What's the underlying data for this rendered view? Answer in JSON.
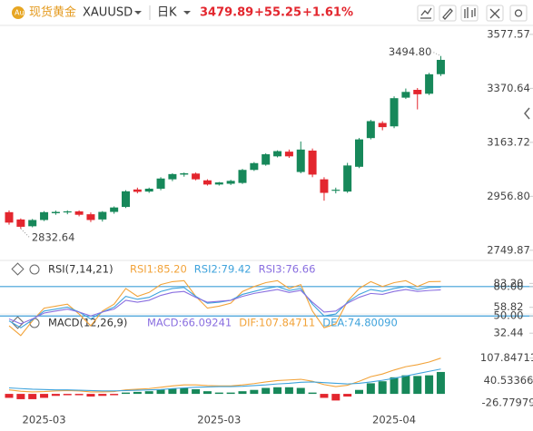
{
  "header": {
    "name": "现货黄金",
    "symbol": "XAUUSD",
    "period": "日K",
    "price": "3479.89",
    "change": "+55.25",
    "change_pct": "+1.61%"
  },
  "chart_data": [
    {
      "type": "candlestick",
      "up_color": "#17885a",
      "down_color": "#e3262e",
      "open": [
        2896,
        2868,
        2842,
        2866,
        2892,
        2895,
        2899,
        2888,
        2868,
        2897,
        2916,
        2983,
        2975,
        2986,
        3022,
        3040,
        3044,
        3018,
        3002,
        3005,
        3008,
        3058,
        3078,
        3110,
        3128,
        3050,
        3132,
        3022,
        2978,
        2975,
        3070,
        3180,
        3238,
        3225,
        3335,
        3365,
        3350,
        3425
      ],
      "high": [
        2903,
        2872,
        2870,
        2900,
        2902,
        2903,
        2903,
        2895,
        2900,
        2918,
        2980,
        2990,
        2990,
        3030,
        3045,
        3048,
        3048,
        3022,
        3012,
        3020,
        3062,
        3088,
        3122,
        3133,
        3136,
        3167,
        3140,
        3030,
        2990,
        3085,
        3180,
        3250,
        3245,
        3340,
        3370,
        3372,
        3430,
        3494.8
      ],
      "low": [
        2848,
        2832.64,
        2838,
        2862,
        2886,
        2888,
        2880,
        2858,
        2860,
        2890,
        2912,
        2968,
        2970,
        2980,
        3015,
        3032,
        3018,
        2998,
        2998,
        3000,
        3004,
        3054,
        3074,
        3106,
        3104,
        3045,
        3030,
        2940,
        2968,
        2970,
        3065,
        3175,
        3210,
        3218,
        3330,
        3290,
        3345,
        3418
      ],
      "close": [
        2856,
        2840,
        2866,
        2896,
        2897,
        2899,
        2886,
        2866,
        2897,
        2914,
        2976,
        2974,
        2986,
        3025,
        3042,
        3045,
        3022,
        3002,
        3010,
        3016,
        3058,
        3084,
        3118,
        3130,
        3110,
        3136,
        3040,
        2970,
        2982,
        3075,
        3175,
        3245,
        3222,
        3333,
        3357,
        3348,
        3424.64,
        3479.89
      ],
      "ylim": [
        2718,
        3605
      ],
      "yticks": [
        3577.57,
        3370.64,
        3163.72,
        {
          "value": 2956.8,
          "label": "2956.80"
        },
        2749.87
      ],
      "annotations": {
        "max": "3494.80",
        "min": "2832.64"
      }
    },
    {
      "type": "line",
      "title": "RSI(7,14,21)",
      "series": [
        {
          "name": "RSI1",
          "legend_label": "RSI1:85.20",
          "color": "#f2a33a",
          "values": [
            40,
            30,
            45,
            58,
            60,
            62,
            52,
            40,
            55,
            62,
            78,
            70,
            74,
            82,
            85,
            86,
            70,
            58,
            60,
            63,
            75,
            80,
            84,
            86,
            78,
            82,
            55,
            38,
            42,
            65,
            78,
            85,
            80,
            84,
            86,
            80,
            85,
            85.2
          ]
        },
        {
          "name": "RSI2",
          "legend_label": "RSI2:79.42",
          "color": "#3fa3dc",
          "values": [
            45,
            38,
            46,
            55,
            57,
            59,
            54,
            47,
            54,
            59,
            70,
            67,
            69,
            75,
            78,
            79,
            70,
            63,
            64,
            66,
            72,
            75,
            78,
            80,
            76,
            78,
            62,
            50,
            52,
            64,
            72,
            77,
            75,
            78,
            80,
            77,
            79,
            79.42
          ]
        },
        {
          "name": "RSI3",
          "legend_label": "RSI3:76.66",
          "color": "#8a6fe0",
          "values": [
            47,
            42,
            47,
            53,
            55,
            57,
            54,
            50,
            54,
            57,
            66,
            64,
            66,
            71,
            74,
            75,
            69,
            64,
            65,
            66,
            70,
            73,
            75,
            77,
            74,
            76,
            64,
            54,
            55,
            63,
            69,
            73,
            72,
            75,
            77,
            75,
            76,
            76.66
          ]
        }
      ],
      "levels": [
        80,
        50
      ],
      "level_color": "#3f9fd8",
      "ylim": [
        28,
        90
      ],
      "yticks": [
        {
          "value": 80,
          "label": "80.00"
        },
        {
          "value": 83.2,
          "label": "83.20"
        },
        58.82,
        {
          "value": 50,
          "label": "50.00"
        },
        32.44
      ]
    },
    {
      "type": "macd",
      "title": "MACD(12,26,9)",
      "histogram": {
        "name": "MACD",
        "legend_label": "MACD:66.09241",
        "up_color": "#17885a",
        "down_color": "#e3262e",
        "values": [
          -12,
          -16,
          -16,
          -12,
          -6,
          -4,
          -4,
          -8,
          -6,
          -4,
          4,
          6,
          8,
          14,
          16,
          18,
          14,
          8,
          4,
          4,
          8,
          12,
          18,
          20,
          20,
          18,
          4,
          -12,
          -20,
          -8,
          12,
          32,
          38,
          50,
          56,
          54,
          56,
          66.09
        ]
      },
      "series": [
        {
          "name": "DIF",
          "legend_label": "DIF:107.84711",
          "color": "#f2a33a",
          "values": [
            12,
            8,
            6,
            7,
            9,
            10,
            9,
            6,
            6,
            7,
            12,
            14,
            16,
            20,
            24,
            27,
            27,
            25,
            24,
            24,
            27,
            31,
            36,
            40,
            42,
            44,
            38,
            28,
            22,
            26,
            38,
            52,
            60,
            72,
            82,
            88,
            96,
            107.85
          ]
        },
        {
          "name": "DEA",
          "legend_label": "DEA:74.80090",
          "color": "#3fa3dc",
          "values": [
            18,
            16,
            14,
            13,
            12,
            12,
            11,
            10,
            9,
            9,
            10,
            11,
            12,
            13,
            16,
            18,
            20,
            21,
            22,
            22,
            23,
            25,
            27,
            30,
            32,
            35,
            36,
            34,
            32,
            30,
            32,
            36,
            41,
            47,
            54,
            61,
            68,
            74.8
          ]
        }
      ],
      "ylim": [
        -60,
        170
      ],
      "yticks": [
        107.84711,
        40.53366,
        -26.77979
      ],
      "categories": [
        null,
        null,
        null,
        "2025-03",
        null,
        null,
        null,
        null,
        null,
        null,
        null,
        null,
        null,
        null,
        null,
        null,
        null,
        null,
        "2025-03",
        null,
        null,
        null,
        null,
        null,
        null,
        null,
        null,
        null,
        null,
        null,
        null,
        null,
        null,
        "2025-04",
        null,
        null,
        null,
        null
      ]
    }
  ]
}
